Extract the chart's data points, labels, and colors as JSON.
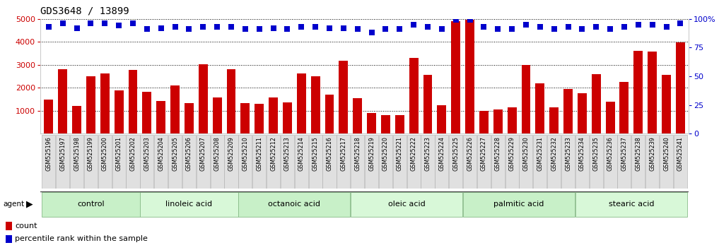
{
  "title": "GDS3648 / 13899",
  "samples": [
    "GSM525196",
    "GSM525197",
    "GSM525198",
    "GSM525199",
    "GSM525200",
    "GSM525201",
    "GSM525202",
    "GSM525203",
    "GSM525204",
    "GSM525205",
    "GSM525206",
    "GSM525207",
    "GSM525208",
    "GSM525209",
    "GSM525210",
    "GSM525211",
    "GSM525212",
    "GSM525213",
    "GSM525214",
    "GSM525215",
    "GSM525216",
    "GSM525217",
    "GSM525218",
    "GSM525219",
    "GSM525220",
    "GSM525221",
    "GSM525222",
    "GSM525223",
    "GSM525224",
    "GSM525225",
    "GSM525226",
    "GSM525227",
    "GSM525228",
    "GSM525229",
    "GSM525230",
    "GSM525231",
    "GSM525232",
    "GSM525233",
    "GSM525234",
    "GSM525235",
    "GSM525236",
    "GSM525237",
    "GSM525238",
    "GSM525239",
    "GSM525240",
    "GSM525241"
  ],
  "counts": [
    1500,
    2820,
    1220,
    2500,
    2620,
    1900,
    2780,
    1820,
    1430,
    2100,
    1340,
    3030,
    1580,
    2800,
    1330,
    1310,
    1580,
    1350,
    2620,
    2500,
    1700,
    3170,
    1550,
    900,
    800,
    800,
    3300,
    2550,
    1250,
    4900,
    4950,
    1000,
    1050,
    1150,
    3000,
    2200,
    1150,
    1950,
    1750,
    2600,
    1400,
    2250,
    3600,
    3580,
    2550,
    3980
  ],
  "percentiles": [
    93,
    96,
    92,
    96,
    96,
    94,
    96,
    91,
    92,
    93,
    91,
    93,
    93,
    93,
    91,
    91,
    92,
    91,
    93,
    93,
    92,
    92,
    91,
    88,
    91,
    91,
    95,
    93,
    91,
    99,
    99,
    93,
    91,
    91,
    95,
    93,
    91,
    93,
    91,
    93,
    91,
    93,
    95,
    95,
    93,
    96
  ],
  "groups": [
    {
      "label": "control",
      "start": 0,
      "end": 7,
      "color": "#c8f0c8"
    },
    {
      "label": "linoleic acid",
      "start": 7,
      "end": 14,
      "color": "#d8f8d8"
    },
    {
      "label": "octanoic acid",
      "start": 14,
      "end": 22,
      "color": "#c8f0c8"
    },
    {
      "label": "oleic acid",
      "start": 22,
      "end": 30,
      "color": "#d8f8d8"
    },
    {
      "label": "palmitic acid",
      "start": 30,
      "end": 38,
      "color": "#c8f0c8"
    },
    {
      "label": "stearic acid",
      "start": 38,
      "end": 46,
      "color": "#d8f8d8"
    }
  ],
  "bar_color": "#cc0000",
  "dot_color": "#0000cc",
  "ylim_left": [
    0,
    5000
  ],
  "ylim_right": [
    0,
    100
  ],
  "yticks_left": [
    1000,
    2000,
    3000,
    4000,
    5000
  ],
  "yticks_right": [
    0,
    25,
    50,
    75,
    100
  ],
  "title_fontsize": 10,
  "bar_width": 0.65,
  "dot_size": 40,
  "cell_bg": "#e0e0e0",
  "cell_border": "#aaaaaa"
}
